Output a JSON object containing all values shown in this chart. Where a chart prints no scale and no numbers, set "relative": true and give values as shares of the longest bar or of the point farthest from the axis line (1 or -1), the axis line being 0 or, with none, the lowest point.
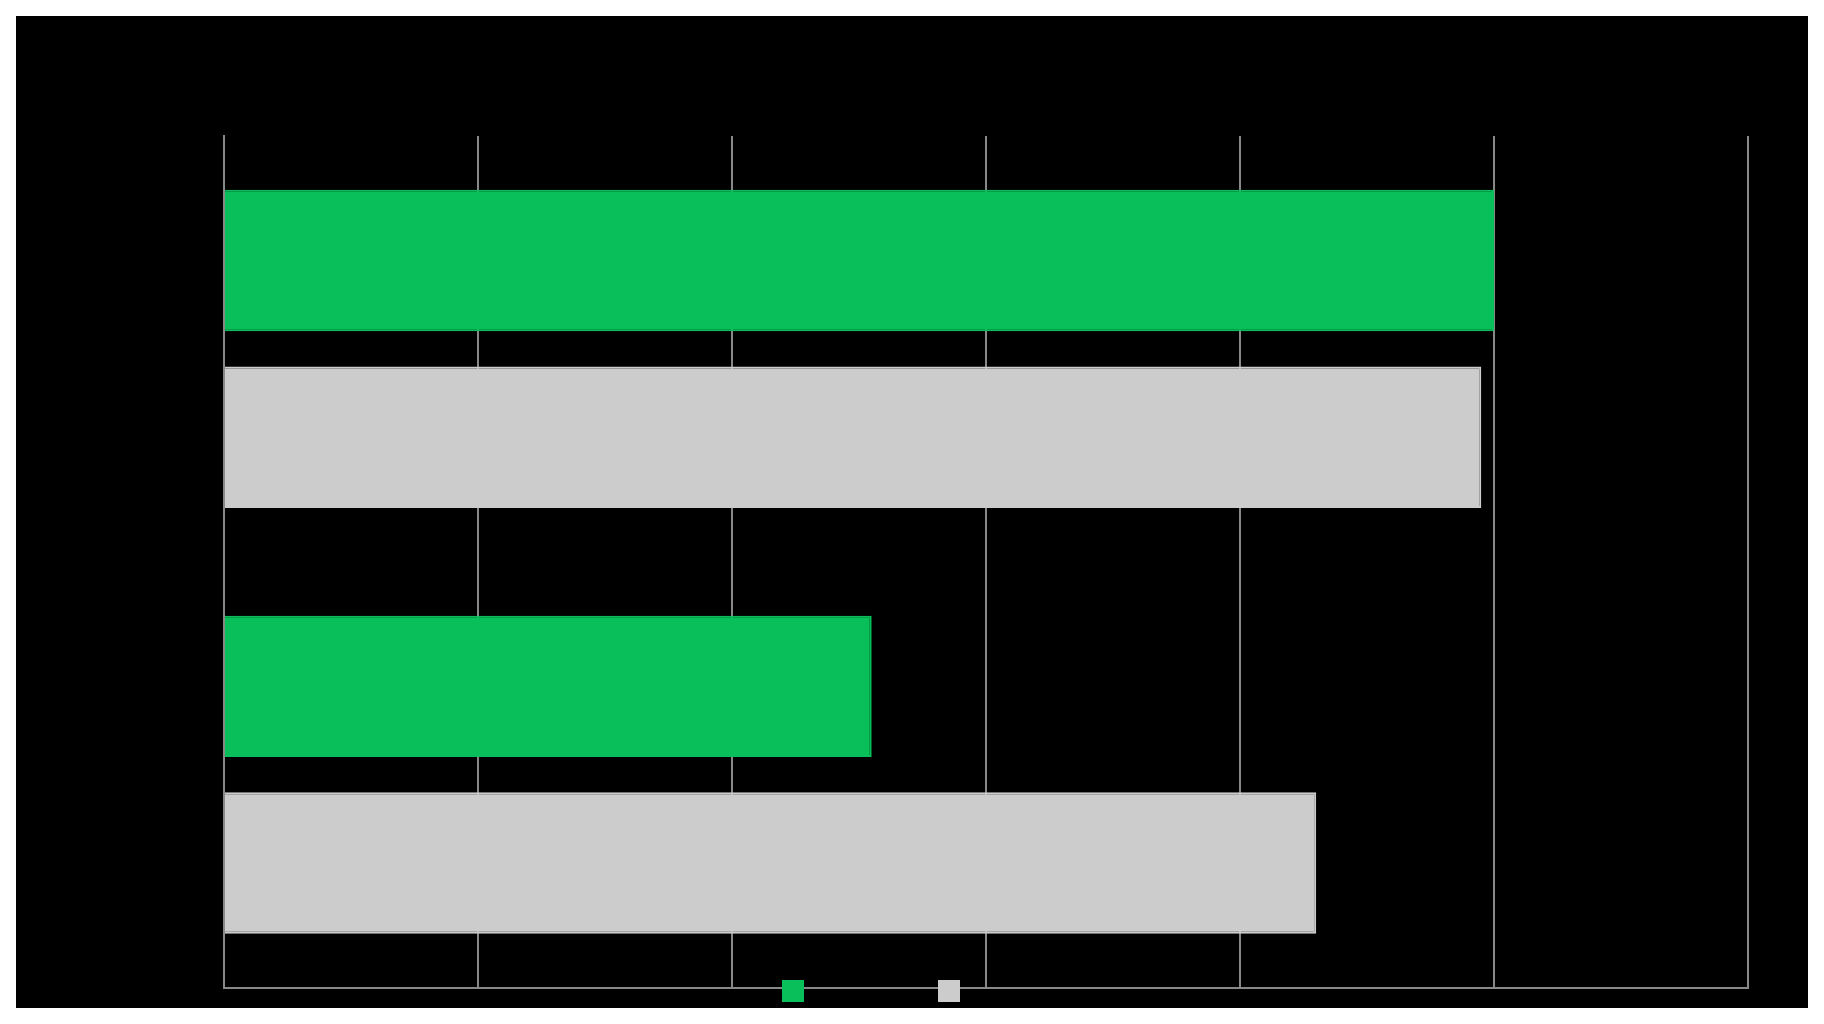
{
  "chart_data": {
    "type": "bar",
    "orientation": "horizontal",
    "relative": true,
    "categories": [
      null,
      null
    ],
    "series": [
      {
        "color": "#08bf5a",
        "values": [
          1,
          0.51
        ]
      },
      {
        "color": "#cccccc",
        "values": [
          0.99,
          0.86
        ]
      }
    ],
    "grid": "x"
  }
}
